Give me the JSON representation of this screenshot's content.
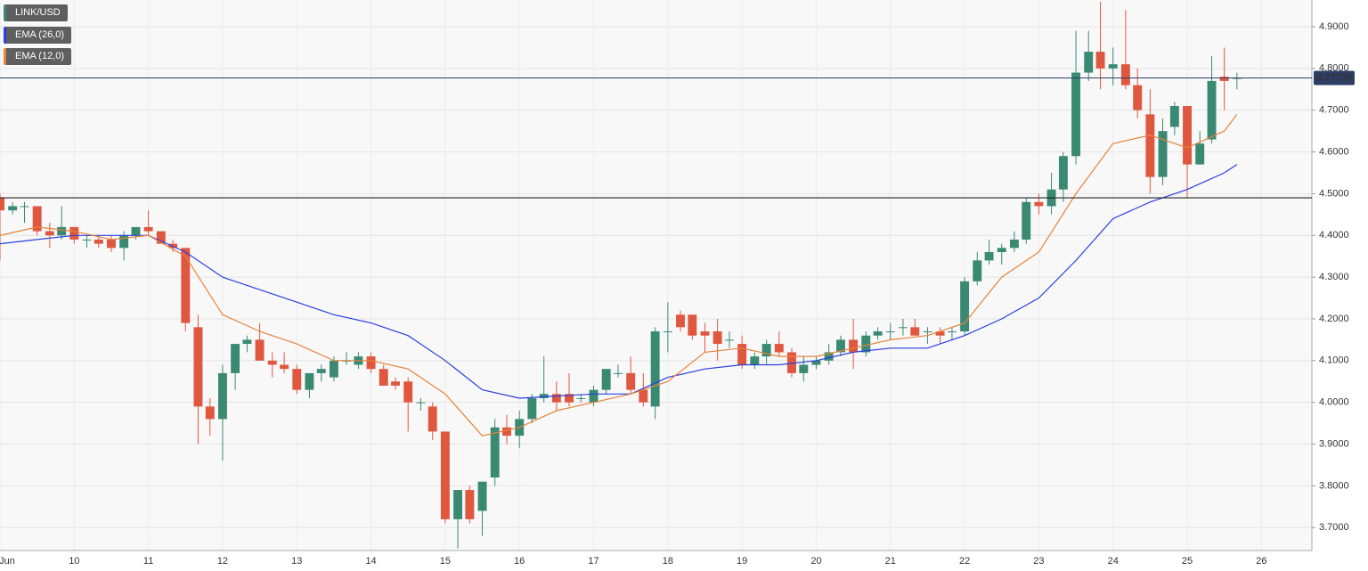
{
  "chart_data": {
    "type": "candlestick",
    "title": "LINK/USD",
    "up_color": "#3a8a73",
    "down_color": "#e0573f",
    "x": [
      9,
      9.17,
      9.33,
      9.5,
      9.67,
      9.83,
      10,
      10.17,
      10.33,
      10.5,
      10.67,
      10.83,
      11,
      11.17,
      11.33,
      11.5,
      11.67,
      11.83,
      12,
      12.17,
      12.33,
      12.5,
      12.67,
      12.83,
      13,
      13.17,
      13.33,
      13.5,
      13.67,
      13.83,
      14,
      14.17,
      14.33,
      14.5,
      14.67,
      14.83,
      15,
      15.17,
      15.33,
      15.5,
      15.67,
      15.83,
      16,
      16.17,
      16.33,
      16.5,
      16.67,
      16.83,
      17,
      17.17,
      17.33,
      17.5,
      17.67,
      17.83,
      18,
      18.17,
      18.33,
      18.5,
      18.67,
      18.83,
      19,
      19.17,
      19.33,
      19.5,
      19.67,
      19.83,
      20,
      20.17,
      20.33,
      20.5,
      20.67,
      20.83,
      21,
      21.17,
      21.33,
      21.5,
      21.67,
      21.83,
      22,
      22.17,
      22.33,
      22.5,
      22.67,
      22.83,
      23,
      23.17,
      23.33,
      23.5,
      23.67,
      23.83,
      24,
      24.17,
      24.33,
      24.5,
      24.67,
      24.83,
      25,
      25.17,
      25.33,
      25.5,
      25.67
    ],
    "open": [
      4.49,
      4.46,
      4.47,
      4.47,
      4.41,
      4.4,
      4.42,
      4.39,
      4.39,
      4.39,
      4.37,
      4.4,
      4.42,
      4.41,
      4.38,
      4.37,
      4.18,
      3.99,
      3.96,
      4.07,
      4.14,
      4.15,
      4.1,
      4.09,
      4.08,
      4.03,
      4.07,
      4.06,
      4.1,
      4.09,
      4.11,
      4.08,
      4.05,
      4.05,
      4.0,
      3.99,
      3.93,
      3.72,
      3.79,
      3.74,
      3.82,
      3.94,
      3.92,
      3.96,
      4.01,
      4.02,
      4.02,
      4.01,
      4.0,
      4.03,
      4.07,
      4.07,
      4.03,
      3.99,
      4.17,
      4.21,
      4.21,
      4.17,
      4.17,
      4.15,
      4.14,
      4.09,
      4.11,
      4.14,
      4.12,
      4.07,
      4.09,
      4.1,
      4.12,
      4.15,
      4.12,
      4.16,
      4.17,
      4.18,
      4.18,
      4.17,
      4.17,
      4.17,
      4.17,
      4.29,
      4.34,
      4.36,
      4.37,
      4.39,
      4.48,
      4.47,
      4.51,
      4.59,
      4.79,
      4.84,
      4.8,
      4.81,
      4.76,
      4.69,
      4.54,
      4.66,
      4.71,
      4.57,
      4.63,
      4.78,
      4.775
    ],
    "high": [
      4.5,
      4.48,
      4.48,
      4.47,
      4.43,
      4.47,
      4.42,
      4.4,
      4.4,
      4.4,
      4.41,
      4.42,
      4.46,
      4.41,
      4.39,
      4.37,
      4.21,
      4.01,
      4.09,
      4.14,
      4.16,
      4.19,
      4.12,
      4.12,
      4.09,
      4.07,
      4.09,
      4.11,
      4.12,
      4.12,
      4.12,
      4.09,
      4.06,
      4.06,
      4.01,
      4.0,
      3.93,
      3.79,
      3.8,
      3.81,
      3.96,
      3.97,
      3.98,
      4.02,
      4.11,
      4.05,
      4.07,
      4.02,
      4.04,
      4.08,
      4.09,
      4.11,
      4.07,
      4.18,
      4.24,
      4.22,
      4.21,
      4.19,
      4.2,
      4.17,
      4.16,
      4.12,
      4.15,
      4.17,
      4.13,
      4.11,
      4.11,
      4.14,
      4.16,
      4.2,
      4.17,
      4.18,
      4.19,
      4.2,
      4.2,
      4.18,
      4.18,
      4.18,
      4.3,
      4.36,
      4.39,
      4.38,
      4.41,
      4.49,
      4.5,
      4.55,
      4.6,
      4.89,
      4.89,
      4.96,
      4.85,
      4.94,
      4.8,
      4.75,
      4.68,
      4.72,
      4.71,
      4.65,
      4.83,
      4.85,
      4.79
    ],
    "low": [
      4.34,
      4.45,
      4.43,
      4.4,
      4.37,
      4.39,
      4.38,
      4.37,
      4.37,
      4.36,
      4.34,
      4.39,
      4.4,
      4.38,
      4.36,
      4.17,
      3.9,
      3.92,
      3.86,
      4.03,
      4.12,
      4.1,
      4.06,
      4.07,
      4.02,
      4.01,
      4.05,
      4.05,
      4.09,
      4.08,
      4.07,
      4.04,
      4.03,
      3.93,
      3.98,
      3.91,
      3.71,
      3.65,
      3.71,
      3.68,
      3.8,
      3.9,
      3.89,
      3.95,
      4.0,
      3.98,
      3.99,
      4.0,
      3.99,
      4.02,
      4.06,
      4.02,
      3.99,
      3.96,
      4.12,
      4.17,
      4.15,
      4.12,
      4.1,
      4.13,
      4.08,
      4.08,
      4.09,
      4.11,
      4.06,
      4.05,
      4.08,
      4.09,
      4.11,
      4.08,
      4.11,
      4.15,
      4.15,
      4.16,
      4.16,
      4.14,
      4.14,
      4.15,
      4.16,
      4.28,
      4.33,
      4.33,
      4.36,
      4.38,
      4.45,
      4.45,
      4.48,
      4.57,
      4.77,
      4.75,
      4.76,
      4.75,
      4.68,
      4.5,
      4.52,
      4.64,
      4.49,
      4.57,
      4.62,
      4.7,
      4.75
    ],
    "close": [
      4.46,
      4.47,
      4.47,
      4.41,
      4.4,
      4.42,
      4.39,
      4.39,
      4.38,
      4.37,
      4.4,
      4.42,
      4.41,
      4.38,
      4.37,
      4.19,
      3.99,
      3.96,
      4.07,
      4.14,
      4.15,
      4.1,
      4.09,
      4.08,
      4.03,
      4.07,
      4.08,
      4.1,
      4.1,
      4.11,
      4.08,
      4.04,
      4.04,
      4.0,
      4.0,
      3.93,
      3.72,
      3.79,
      3.72,
      3.81,
      3.94,
      3.92,
      3.96,
      4.01,
      4.02,
      4.0,
      4.0,
      4.01,
      4.03,
      4.08,
      4.07,
      4.03,
      4.0,
      4.17,
      4.17,
      4.18,
      4.16,
      4.16,
      4.14,
      4.15,
      4.09,
      4.11,
      4.14,
      4.12,
      4.07,
      4.09,
      4.1,
      4.12,
      4.15,
      4.12,
      4.16,
      4.17,
      4.17,
      4.18,
      4.16,
      4.17,
      4.16,
      4.17,
      4.29,
      4.34,
      4.36,
      4.37,
      4.39,
      4.48,
      4.47,
      4.51,
      4.59,
      4.79,
      4.84,
      4.8,
      4.81,
      4.76,
      4.7,
      4.54,
      4.65,
      4.71,
      4.57,
      4.62,
      4.77,
      4.77,
      4.77726
    ],
    "series": [
      {
        "name": "EMA (26,0)",
        "color": "#2b3fe0",
        "x": [
          9,
          9.5,
          10,
          10.5,
          11,
          11.5,
          12,
          12.5,
          13,
          13.5,
          14,
          14.5,
          15,
          15.5,
          16,
          16.5,
          17,
          17.5,
          18,
          18.5,
          19,
          19.5,
          20,
          20.5,
          21,
          21.5,
          22,
          22.5,
          23,
          23.5,
          24,
          24.5,
          25,
          25.5,
          25.67
        ],
        "values": [
          4.38,
          4.39,
          4.4,
          4.4,
          4.4,
          4.36,
          4.3,
          4.27,
          4.24,
          4.21,
          4.19,
          4.16,
          4.1,
          4.03,
          4.01,
          4.015,
          4.02,
          4.02,
          4.06,
          4.08,
          4.09,
          4.09,
          4.1,
          4.12,
          4.13,
          4.13,
          4.16,
          4.2,
          4.25,
          4.34,
          4.44,
          4.48,
          4.51,
          4.55,
          4.57
        ]
      },
      {
        "name": "EMA (12,0)",
        "color": "#e8823a",
        "x": [
          9,
          9.5,
          10,
          10.5,
          11,
          11.5,
          12,
          12.5,
          13,
          13.5,
          14,
          14.5,
          15,
          15.5,
          16,
          16.5,
          17,
          17.5,
          18,
          18.5,
          19,
          19.5,
          20,
          20.5,
          21,
          21.5,
          22,
          22.5,
          23,
          23.5,
          24,
          24.5,
          25,
          25.5,
          25.67
        ],
        "values": [
          4.4,
          4.42,
          4.41,
          4.39,
          4.4,
          4.35,
          4.21,
          4.17,
          4.14,
          4.1,
          4.1,
          4.08,
          4.02,
          3.92,
          3.94,
          3.98,
          4.0,
          4.02,
          4.05,
          4.12,
          4.13,
          4.11,
          4.11,
          4.13,
          4.15,
          4.16,
          4.19,
          4.3,
          4.36,
          4.5,
          4.62,
          4.64,
          4.61,
          4.65,
          4.69
        ]
      }
    ],
    "price_line": 4.77726,
    "price_line_color": "#2c3e66",
    "support_line": 4.49,
    "xlim": [
      9,
      26.68
    ],
    "xticks": [
      {
        "value": 9,
        "label": "Jun"
      },
      10,
      11,
      12,
      13,
      14,
      15,
      16,
      17,
      18,
      19,
      20,
      21,
      22,
      23,
      24,
      25,
      26
    ],
    "ylim": [
      3.645,
      4.964
    ],
    "yticks": [
      {
        "value": 3.7,
        "label": "3.7000"
      },
      {
        "value": 3.8,
        "label": "3.8000"
      },
      {
        "value": 3.9,
        "label": "3.9000"
      },
      {
        "value": 4.0,
        "label": "4.0000"
      },
      {
        "value": 4.1,
        "label": "4.1000"
      },
      {
        "value": 4.2,
        "label": "4.2000"
      },
      {
        "value": 4.3,
        "label": "4.3000"
      },
      {
        "value": 4.4,
        "label": "4.4000"
      },
      {
        "value": 4.5,
        "label": "4.5000"
      },
      {
        "value": 4.6,
        "label": "4.6000"
      },
      {
        "value": 4.7,
        "label": "4.7000"
      },
      {
        "value": 4.8,
        "label": "4.8000"
      },
      {
        "value": 4.9,
        "label": "4.9000"
      }
    ],
    "grid": true
  }
}
